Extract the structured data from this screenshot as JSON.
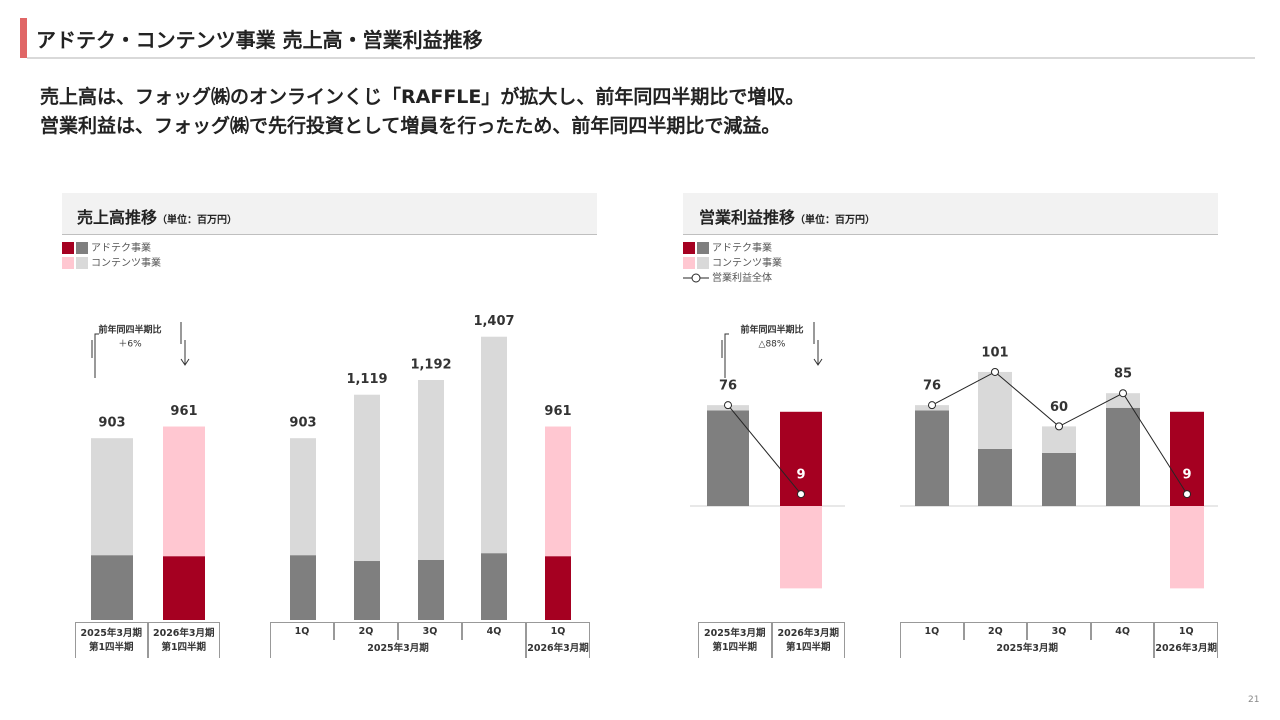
{
  "header": {
    "title": "アドテク・コンテンツ事業 売上高・営業利益推移"
  },
  "message": [
    "売上高は、フォッグ㈱のオンラインくじ「RAFFLE」が拡大し、前年同四半期比で増収。",
    "営業利益は、フォッグ㈱で先行投資として増員を行ったため、前年同四半期比で減益。"
  ],
  "panels": [
    {
      "title": "売上高推移",
      "unit": "（単位：百万円）"
    },
    {
      "title": "営業利益推移",
      "unit": "（単位：百万円）"
    }
  ],
  "page_number": "21",
  "chart_data": [
    {
      "type": "stacked-bar",
      "categories": [
        "2025年3月期\n第1四半期",
        "2026年3月期\n第1四半期"
      ],
      "series": [
        {
          "name": "アドテク事業",
          "colors": [
            "#7f7f7f",
            "#a50021"
          ],
          "values": [
            322,
            317
          ]
        },
        {
          "name": "コンテンツ事業",
          "colors": [
            "#d9d9d9",
            "#ffc7d1"
          ],
          "values": [
            581,
            644
          ]
        }
      ],
      "totals": [
        903,
        961
      ],
      "ylim": [
        0,
        1500
      ],
      "annotation": {
        "title": "前年同四半期比",
        "text": "＋6%"
      }
    },
    {
      "type": "stacked-bar",
      "categories": [
        "1Q",
        "2Q",
        "3Q",
        "4Q",
        "1Q"
      ],
      "category_groups": [
        "2025年3月期",
        "2025年3月期",
        "2025年3月期",
        "2025年3月期",
        "2026年3月期"
      ],
      "series": [
        {
          "colors": [
            "#7f7f7f",
            "#7f7f7f",
            "#7f7f7f",
            "#7f7f7f",
            "#a50021"
          ],
          "values": [
            322,
            293,
            298,
            332,
            317
          ]
        },
        {
          "colors": [
            "#d9d9d9",
            "#d9d9d9",
            "#d9d9d9",
            "#d9d9d9",
            "#ffc7d1"
          ],
          "values": [
            581,
            826,
            894,
            1075,
            644
          ]
        }
      ],
      "totals": [
        903,
        1119,
        1192,
        1407,
        961
      ],
      "total_labels": [
        "903",
        "1,119",
        "1,192",
        "1,407",
        "961"
      ],
      "ylim": [
        0,
        1500
      ]
    },
    {
      "type": "stacked-bar-line",
      "categories": [
        "2025年3月期\n第1四半期",
        "2026年3月期\n第1四半期"
      ],
      "series": [
        {
          "name": "アドテク事業",
          "colors": [
            "#7f7f7f",
            "#a50021"
          ],
          "values": [
            72,
            71
          ]
        },
        {
          "name": "コンテンツ事業",
          "colors": [
            "#d9d9d9",
            "#ffc7d1"
          ],
          "values": [
            4,
            -62
          ]
        },
        {
          "name": "営業利益全体",
          "type": "line",
          "color": "#262626",
          "values": [
            76,
            9
          ]
        }
      ],
      "ylim": [
        -70,
        110
      ],
      "annotation": {
        "title": "前年同四半期比",
        "text": "△88%"
      }
    },
    {
      "type": "stacked-bar-line",
      "categories": [
        "1Q",
        "2Q",
        "3Q",
        "4Q",
        "1Q"
      ],
      "category_groups": [
        "2025年3月期",
        "2025年3月期",
        "2025年3月期",
        "2025年3月期",
        "2026年3月期"
      ],
      "series": [
        {
          "colors": [
            "#7f7f7f",
            "#7f7f7f",
            "#7f7f7f",
            "#7f7f7f",
            "#a50021"
          ],
          "values": [
            72,
            43,
            40,
            74,
            71
          ]
        },
        {
          "colors": [
            "#d9d9d9",
            "#d9d9d9",
            "#d9d9d9",
            "#d9d9d9",
            "#ffc7d1"
          ],
          "values": [
            4,
            58,
            20,
            11,
            -62
          ]
        },
        {
          "type": "line",
          "color": "#262626",
          "values": [
            76,
            101,
            60,
            85,
            9
          ]
        }
      ],
      "ylim": [
        -70,
        110
      ]
    }
  ]
}
